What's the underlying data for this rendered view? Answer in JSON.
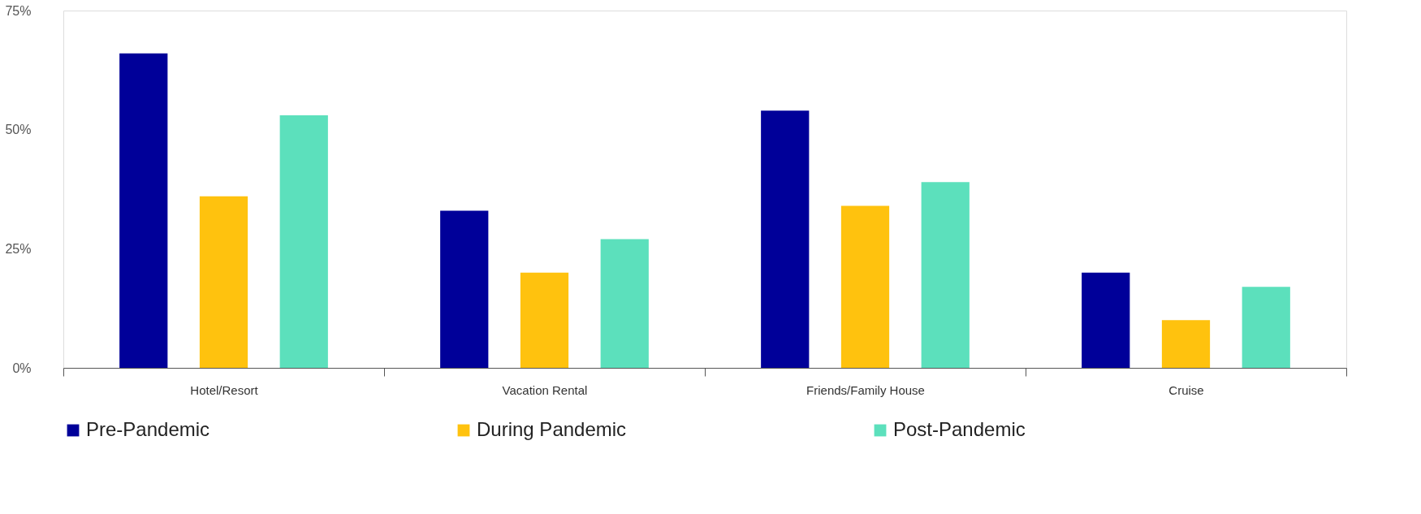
{
  "chart_data": {
    "type": "bar",
    "categories": [
      "Hotel/Resort",
      "Vacation Rental",
      "Friends/Family House",
      "Cruise"
    ],
    "series": [
      {
        "name": "Pre-Pandemic",
        "color": "#000099",
        "values": [
          66,
          33,
          54,
          20
        ]
      },
      {
        "name": "During Pandemic",
        "color": "#ffc20e",
        "values": [
          36,
          20,
          34,
          10
        ]
      },
      {
        "name": "Post-Pandemic",
        "color": "#5ce0bc",
        "values": [
          53,
          27,
          39,
          17
        ]
      }
    ],
    "ylim": [
      0,
      75
    ],
    "yticks": [
      {
        "value": 0,
        "label": "0%"
      },
      {
        "value": 25,
        "label": "25%"
      },
      {
        "value": 50,
        "label": "50%"
      },
      {
        "value": 75,
        "label": "75%"
      }
    ],
    "grid": false,
    "legend": "bottom"
  }
}
